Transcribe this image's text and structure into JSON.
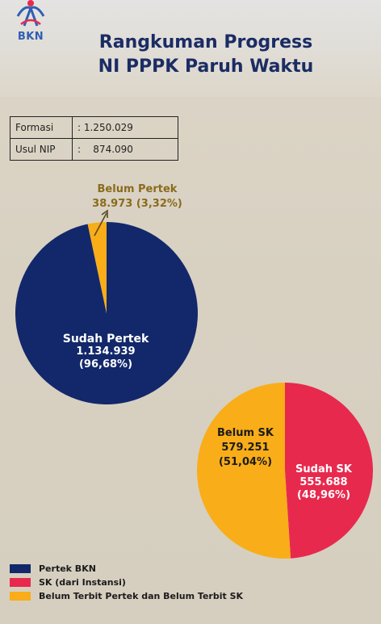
{
  "header": {
    "logo_text": "BKN",
    "title_line1": "Rangkuman Progress",
    "title_line2": "NI PPPK Paruh Waktu"
  },
  "summary": [
    {
      "label": "Formasi",
      "value": ": 1.250.029"
    },
    {
      "label": "Usul NIP",
      "value": ":    874.090"
    }
  ],
  "chart_data": [
    {
      "type": "pie",
      "categories": [
        "Sudah Pertek",
        "Belum Pertek"
      ],
      "values": [
        1134939,
        38973
      ],
      "percentages": [
        96.68,
        3.32
      ],
      "labels": [
        {
          "name": "Sudah Pertek",
          "value": "1.134.939",
          "percent": "(96,68%)"
        },
        {
          "name": "Belum Pertek",
          "value_percent": "38.973 (3,32%)"
        }
      ],
      "colors": [
        "#13286a",
        "#f9ad18"
      ]
    },
    {
      "type": "pie",
      "categories": [
        "Sudah SK",
        "Belum SK"
      ],
      "values": [
        555688,
        579251
      ],
      "percentages": [
        48.96,
        51.04
      ],
      "labels": [
        {
          "name": "Sudah SK",
          "value": "555.688",
          "percent": "(48,96%)"
        },
        {
          "name": "Belum SK",
          "value": "579.251",
          "percent": "(51,04%)"
        }
      ],
      "colors": [
        "#e8294e",
        "#f9ad18"
      ]
    }
  ],
  "legend": [
    {
      "label": "Pertek BKN",
      "color": "#13286a"
    },
    {
      "label": "SK (dari Instansi)",
      "color": "#e8294e"
    },
    {
      "label": "Belum Terbit Pertek dan Belum Terbit SK",
      "color": "#f9ad18"
    }
  ]
}
